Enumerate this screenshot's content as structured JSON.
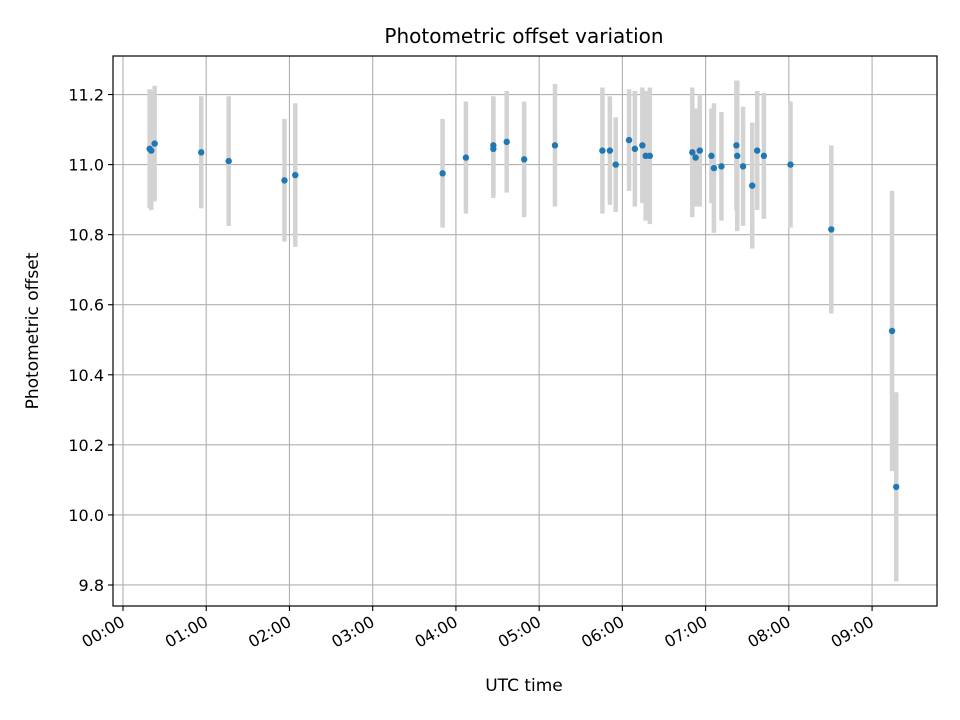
{
  "chart_data": {
    "type": "scatter",
    "title": "Photometric offset variation",
    "xlabel": "UTC time",
    "ylabel": "Photometric offset",
    "x_unit": "hours UTC",
    "xlim": [
      -0.12,
      9.78
    ],
    "ylim": [
      9.74,
      11.31
    ],
    "x_ticks": [
      0,
      1,
      2,
      3,
      4,
      5,
      6,
      7,
      8,
      9
    ],
    "x_tick_labels": [
      "00:00",
      "01:00",
      "02:00",
      "03:00",
      "04:00",
      "05:00",
      "06:00",
      "07:00",
      "08:00",
      "09:00"
    ],
    "y_ticks": [
      9.8,
      10.0,
      10.2,
      10.4,
      10.6,
      10.8,
      11.0,
      11.2
    ],
    "y_tick_labels": [
      "9.8",
      "10.0",
      "10.2",
      "10.4",
      "10.6",
      "10.8",
      "11.0",
      "11.2"
    ],
    "grid": true,
    "marker_color": "#1f77b4",
    "errorbar_color": "#d3d3d3",
    "points": [
      {
        "x": 0.32,
        "y": 11.045,
        "err": 0.17
      },
      {
        "x": 0.34,
        "y": 11.04,
        "err": 0.17
      },
      {
        "x": 0.38,
        "y": 11.06,
        "err": 0.165
      },
      {
        "x": 0.94,
        "y": 11.035,
        "err": 0.16
      },
      {
        "x": 1.27,
        "y": 11.01,
        "err": 0.185
      },
      {
        "x": 1.94,
        "y": 10.955,
        "err": 0.175
      },
      {
        "x": 2.07,
        "y": 10.97,
        "err": 0.205
      },
      {
        "x": 3.84,
        "y": 10.975,
        "err": 0.155
      },
      {
        "x": 4.12,
        "y": 11.02,
        "err": 0.16
      },
      {
        "x": 4.45,
        "y": 11.055,
        "err": 0.14
      },
      {
        "x": 4.45,
        "y": 11.045,
        "err": 0.14
      },
      {
        "x": 4.61,
        "y": 11.065,
        "err": 0.145
      },
      {
        "x": 4.82,
        "y": 11.015,
        "err": 0.165
      },
      {
        "x": 5.19,
        "y": 11.055,
        "err": 0.175
      },
      {
        "x": 5.76,
        "y": 11.04,
        "err": 0.18
      },
      {
        "x": 5.85,
        "y": 11.04,
        "err": 0.155
      },
      {
        "x": 5.92,
        "y": 11.0,
        "err": 0.135
      },
      {
        "x": 6.08,
        "y": 11.07,
        "err": 0.145
      },
      {
        "x": 6.15,
        "y": 11.045,
        "err": 0.165
      },
      {
        "x": 6.24,
        "y": 11.055,
        "err": 0.165
      },
      {
        "x": 6.28,
        "y": 11.025,
        "err": 0.185
      },
      {
        "x": 6.33,
        "y": 11.025,
        "err": 0.195
      },
      {
        "x": 6.84,
        "y": 11.035,
        "err": 0.185
      },
      {
        "x": 6.88,
        "y": 11.02,
        "err": 0.14
      },
      {
        "x": 6.93,
        "y": 11.04,
        "err": 0.16
      },
      {
        "x": 7.07,
        "y": 11.025,
        "err": 0.135
      },
      {
        "x": 7.1,
        "y": 10.99,
        "err": 0.185
      },
      {
        "x": 7.19,
        "y": 10.995,
        "err": 0.155
      },
      {
        "x": 7.37,
        "y": 11.055,
        "err": 0.185
      },
      {
        "x": 7.38,
        "y": 11.025,
        "err": 0.215
      },
      {
        "x": 7.45,
        "y": 10.995,
        "err": 0.17
      },
      {
        "x": 7.56,
        "y": 10.94,
        "err": 0.18
      },
      {
        "x": 7.62,
        "y": 11.04,
        "err": 0.17
      },
      {
        "x": 7.7,
        "y": 11.025,
        "err": 0.18
      },
      {
        "x": 8.02,
        "y": 11.0,
        "err": 0.18
      },
      {
        "x": 8.51,
        "y": 10.815,
        "err": 0.24
      },
      {
        "x": 9.24,
        "y": 10.525,
        "err": 0.4
      },
      {
        "x": 9.29,
        "y": 10.08,
        "err": 0.27
      }
    ]
  }
}
